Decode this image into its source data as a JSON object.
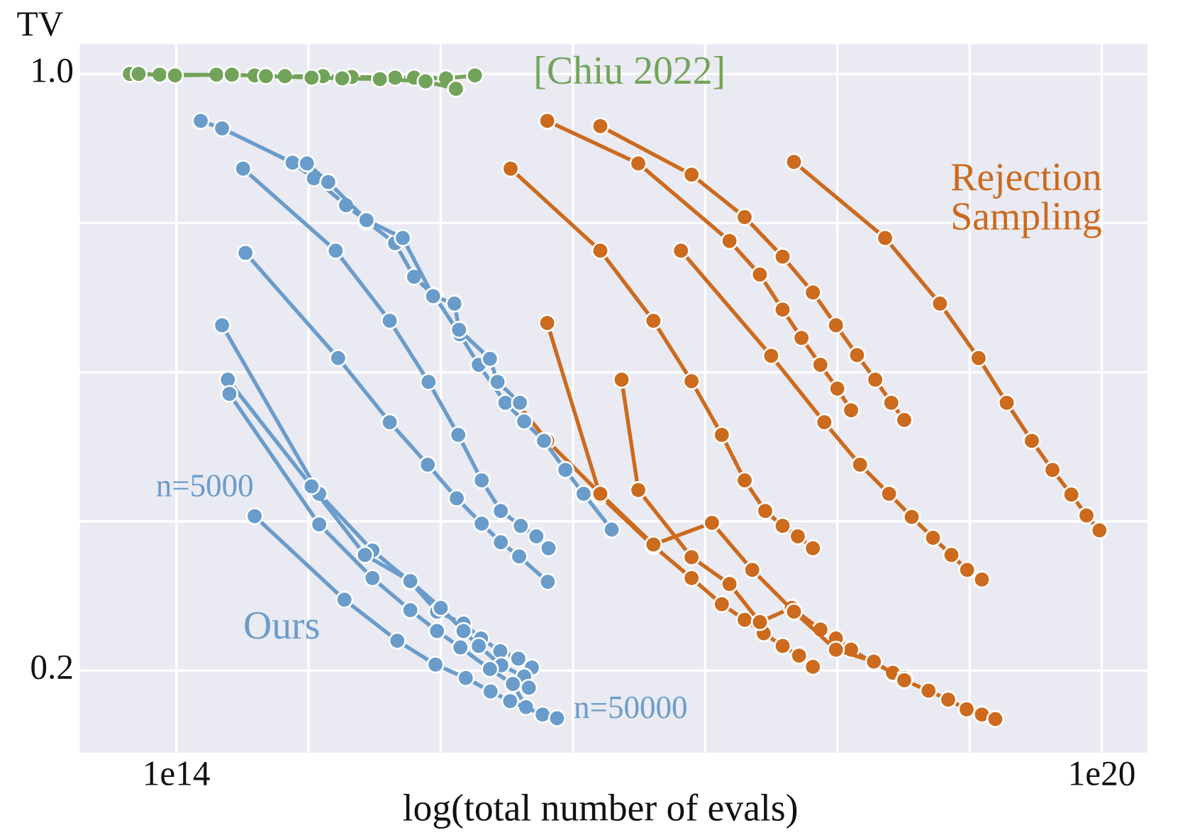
{
  "chart_data": {
    "type": "line",
    "x_label": "log(total number of evals)",
    "y_label": "TV",
    "x_scale": "log",
    "grid": true,
    "background": "#eaeaf2",
    "xlim": [
      23700000000000.0,
      1.98e+20
    ],
    "ylim": [
      0.09,
      1.04
    ],
    "xticks": [
      {
        "value": 100000000000000.0,
        "label": "1e14"
      },
      {
        "value": 1e+20,
        "label": "1e20"
      }
    ],
    "xgrid": [
      720000000000000.0,
      5180000000000000.0,
      3.73e+16,
      2.68e+17,
      1.93e+18,
      1.39e+19
    ],
    "yticks": [
      {
        "value": 1.0,
        "label": "1.0"
      },
      0.2
    ],
    "ygrid": [
      0.4,
      0.6,
      0.8
    ],
    "annotations": [
      {
        "text": "[Chiu 2022]",
        "color": "#72a35a"
      },
      {
        "text": [
          "Rejection",
          "Sampling"
        ],
        "color": "#cc6a1d"
      },
      {
        "text": "n=5000",
        "color": "#6a9ccb"
      },
      {
        "text": "Ours",
        "color": "#6a9ccb"
      },
      {
        "text": "n=50000",
        "color": "#6a9ccb"
      }
    ],
    "series": [
      {
        "color": "#cc6a1d",
        "x": [
          2.54e+16,
          9.89e+16,
          3.86e+17,
          6.07e+17,
          8.53e+17,
          1.13e+18,
          1.5e+18,
          1.93e+18,
          2.37e+18
        ],
        "values": [
          0.937,
          0.88,
          0.776,
          0.731,
          0.684,
          0.646,
          0.61,
          0.578,
          0.549
        ]
      },
      {
        "color": "#cc6a1d",
        "x": [
          5.61e+16,
          2.19e+17,
          4.84e+17,
          8.53e+17,
          1.34e+18,
          1.89e+18,
          2.59e+18,
          3.4e+18,
          4.32e+18,
          5.24e+18
        ],
        "values": [
          0.93,
          0.865,
          0.808,
          0.755,
          0.707,
          0.663,
          0.623,
          0.59,
          0.559,
          0.536
        ]
      },
      {
        "color": "#cc6a1d",
        "x": [
          1.47e+16,
          5.61e+16,
          1.24e+17,
          2.19e+17,
          3.44e+17,
          4.84e+17,
          6.58e+17,
          8.53e+17,
          1.07e+18,
          1.34e+18
        ],
        "values": [
          0.873,
          0.763,
          0.669,
          0.588,
          0.516,
          0.455,
          0.414,
          0.394,
          0.38,
          0.364
        ]
      },
      {
        "color": "#cc6a1d",
        "x": [
          1.87e+17,
          7.19e+17,
          1.59e+18,
          2.71e+18,
          4.18e+18,
          5.86e+18,
          8.05e+18,
          1.06e+19,
          1.34e+19,
          1.67e+19
        ],
        "values": [
          0.763,
          0.622,
          0.533,
          0.476,
          0.437,
          0.406,
          0.378,
          0.355,
          0.335,
          0.322
        ]
      },
      {
        "color": "#cc6a1d",
        "x": [
          1.01e+18,
          3.94e+18,
          8.93e+18,
          1.59e+19,
          2.42e+19,
          3.52e+19,
          4.79e+19,
          6.35e+19,
          7.96e+19,
          9.66e+19
        ],
        "values": [
          0.882,
          0.78,
          0.692,
          0.619,
          0.559,
          0.508,
          0.469,
          0.436,
          0.408,
          0.388
        ]
      },
      {
        "color": "#cc6a1d",
        "x": [
          2.54e+16,
          5.61e+16,
          1.24e+17,
          2.19e+17,
          3.44e+17,
          4.84e+17,
          6.43e+17,
          8.53e+17,
          1.09e+18,
          1.34e+18
        ],
        "values": [
          0.666,
          0.434,
          0.367,
          0.324,
          0.289,
          0.268,
          0.25,
          0.233,
          0.22,
          0.205
        ]
      },
      {
        "color": "#cc6a1d",
        "x": [
          7.71e+16,
          9.89e+16,
          2.19e+17,
          3.86e+17,
          6.07e+17,
          9.77e+17,
          1.5e+18,
          1.89e+18,
          2.37e+18,
          3.33e+18,
          4.42e+18,
          5.24e+18
        ],
        "values": [
          0.59,
          0.442,
          0.352,
          0.316,
          0.265,
          0.284,
          0.255,
          0.243,
          0.228,
          0.21,
          0.197,
          0.19
        ]
      },
      {
        "color": "#cc6a1d",
        "x": [
          1.61e+16,
          2.54e+16,
          5.61e+16,
          1.24e+17,
          2.97e+17,
          5.42e+17,
          1.01e+18,
          1.89e+18,
          3.33e+18,
          5.24e+18,
          7.53e+18,
          1.01e+19,
          1.33e+19,
          1.67e+19,
          2.04e+19
        ],
        "values": [
          0.559,
          0.508,
          0.437,
          0.369,
          0.398,
          0.335,
          0.279,
          0.228,
          0.212,
          0.187,
          0.173,
          0.161,
          0.148,
          0.141,
          0.135
        ]
      },
      {
        "color": "#6a9ccb",
        "x": [
          144000000000000.0,
          198000000000000.0,
          567000000000000.0,
          780000000000000.0,
          1260000000000000.0,
          1720000000000000.0,
          2620000000000000.0,
          3480000000000000.0,
          4730000000000000.0,
          6880000000000000.0,
          9140000000000000.0,
          1.36e+16,
          1.8e+16,
          2.42e+16,
          3.33e+16,
          4.37e+16,
          6.65e+16
        ],
        "values": [
          0.937,
          0.927,
          0.881,
          0.86,
          0.824,
          0.802,
          0.773,
          0.728,
          0.702,
          0.651,
          0.61,
          0.559,
          0.534,
          0.508,
          0.469,
          0.437,
          0.389
        ]
      },
      {
        "color": "#6a9ccb",
        "x": [
          703000000000000.0,
          966000000000000.0,
          1710000000000000.0,
          2940000000000000.0,
          4620000000000000.0,
          6360000000000000.0,
          6810000000000000.0,
          1.08e+16,
          1.21e+16,
          1.69e+16
        ],
        "values": [
          0.88,
          0.855,
          0.804,
          0.78,
          0.702,
          0.692,
          0.657,
          0.618,
          0.587,
          0.559
        ]
      },
      {
        "color": "#6a9ccb",
        "x": [
          271000000000000.0,
          1080000000000000.0,
          2420000000000000.0,
          4320000000000000.0,
          6730000000000000.0,
          9550000000000000.0,
          1.27e+16,
          1.71e+16,
          2.16e+16,
          2.59e+16
        ],
        "values": [
          0.873,
          0.763,
          0.669,
          0.587,
          0.516,
          0.455,
          0.414,
          0.394,
          0.38,
          0.364
        ]
      },
      {
        "color": "#6a9ccb",
        "x": [
          281000000000000.0,
          1120000000000000.0,
          2420000000000000.0,
          4270000000000000.0,
          6580000000000000.0,
          9550000000000000.0,
          1.27e+16,
          1.67e+16,
          2.56e+16
        ],
        "values": [
          0.76,
          0.619,
          0.533,
          0.476,
          0.431,
          0.397,
          0.372,
          0.353,
          0.319
        ]
      },
      {
        "color": "#6a9ccb",
        "x": [
          198000000000000.0,
          844000000000000.0,
          1870000000000000.0,
          3290000000000000.0,
          4900000000000000.0,
          7280000000000000.0,
          9450000000000000.0,
          1.26e+16,
          1.65e+16,
          2.02e+16
        ],
        "values": [
          0.663,
          0.437,
          0.361,
          0.319,
          0.279,
          0.263,
          0.243,
          0.226,
          0.216,
          0.204
        ]
      },
      {
        "color": "#6a9ccb",
        "x": [
          216000000000000.0,
          753000000000000.0,
          1670000000000000.0,
          3290000000000000.0,
          5180000000000000.0,
          7280000000000000.0,
          9140000000000000.0,
          1.28e+16,
          1.8e+16,
          1.93e+16
        ],
        "values": [
          0.59,
          0.447,
          0.355,
          0.32,
          0.284,
          0.253,
          0.233,
          0.207,
          0.192,
          0.177
        ]
      },
      {
        "color": "#6a9ccb",
        "x": [
          221000000000000.0,
          844000000000000.0,
          1870000000000000.0,
          3290000000000000.0,
          4900000000000000.0,
          6950000000000000.0,
          1.08e+16,
          1.52e+16,
          1.85e+16
        ],
        "values": [
          0.571,
          0.396,
          0.324,
          0.281,
          0.253,
          0.231,
          0.202,
          0.182,
          0.151
        ]
      },
      {
        "color": "#6a9ccb",
        "x": [
          322000000000000.0,
          1230000000000000.0,
          2710000000000000.0,
          4790000000000000.0,
          7530000000000000.0,
          1.09e+16,
          1.46e+16,
          2.37e+16,
          2.94e+16
        ],
        "values": [
          0.407,
          0.295,
          0.24,
          0.208,
          0.19,
          0.172,
          0.159,
          0.141,
          0.136
        ]
      },
      {
        "color": "#72a35a",
        "x": [
          50000000000000.0,
          78000000000000.0,
          182000000000000.0,
          322000000000000.0,
          506000000000000.0,
          893000000000000.0,
          1370000000000000.0,
          2620000000000000.0,
          3480000000000000.0,
          5610000000000000.0,
          8630000000000000.0
        ],
        "values": [
          1.0,
          0.999,
          0.999,
          0.998,
          0.997,
          0.997,
          0.996,
          0.995,
          0.995,
          0.994,
          0.998
        ]
      },
      {
        "color": "#72a35a",
        "x": [
          57000000000000.0,
          98000000000000.0,
          229000000000000.0,
          381000000000000.0,
          753000000000000.0,
          1190000000000000.0,
          2090000000000000.0,
          4130000000000000.0,
          6500000000000000.0
        ],
        "values": [
          1.0,
          0.998,
          0.999,
          0.997,
          0.995,
          0.994,
          0.993,
          0.99,
          0.98
        ]
      }
    ]
  }
}
